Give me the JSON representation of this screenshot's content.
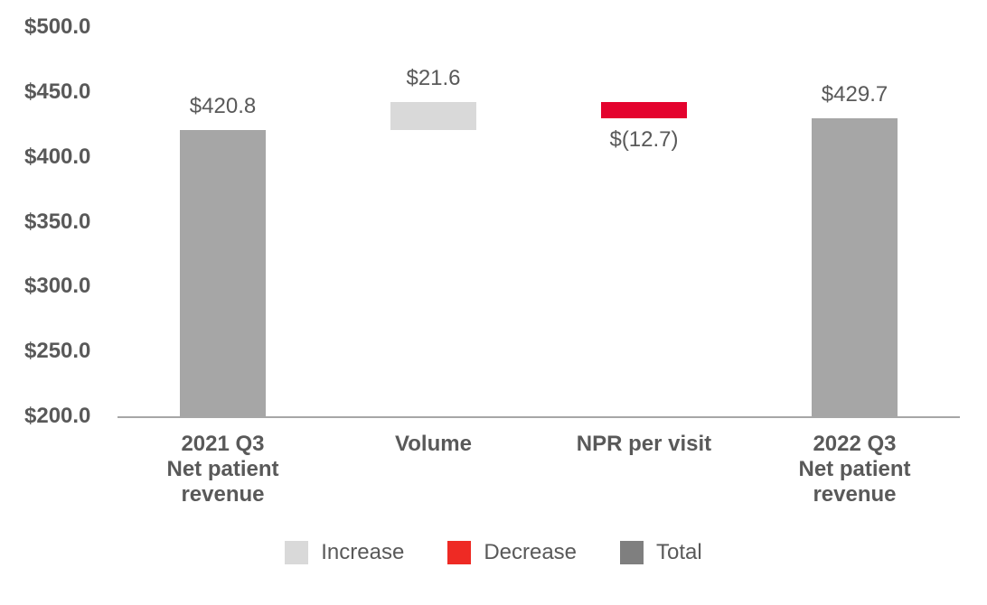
{
  "chart_data": {
    "type": "bar",
    "subtype": "waterfall",
    "title": "",
    "xlabel": "",
    "ylabel": "",
    "grid": false,
    "legend_position": "bottom-center",
    "y_axis": {
      "min": 200,
      "max": 500,
      "step": 50,
      "tick_labels": [
        "$200.0",
        "$250.0",
        "$300.0",
        "$350.0",
        "$400.0",
        "$450.0",
        "$500.0"
      ]
    },
    "categories": [
      "2021 Q3 Net patient revenue",
      "Volume",
      "NPR per visit",
      "2022 Q3 Net patient revenue"
    ],
    "bars": [
      {
        "category_lines": [
          "2021 Q3",
          "Net patient",
          "revenue"
        ],
        "role": "total",
        "start": 200,
        "end": 420.8,
        "value": 420.8,
        "label": "$420.8",
        "label_position": "above"
      },
      {
        "category_lines": [
          "Volume"
        ],
        "role": "increase",
        "start": 420.8,
        "end": 442.4,
        "value": 21.6,
        "label": "$21.6",
        "label_position": "above"
      },
      {
        "category_lines": [
          "NPR per visit"
        ],
        "role": "decrease",
        "start": 442.4,
        "end": 429.7,
        "value": -12.7,
        "label": "$(12.7)",
        "label_position": "below"
      },
      {
        "category_lines": [
          "2022 Q3",
          "Net patient",
          "revenue"
        ],
        "role": "total",
        "start": 200,
        "end": 429.7,
        "value": 429.7,
        "label": "$429.7",
        "label_position": "above"
      }
    ],
    "legend": [
      {
        "label": "Increase",
        "color": "#d9d9d9"
      },
      {
        "label": "Decrease",
        "color": "#ee2a24"
      },
      {
        "label": "Total",
        "color": "#7f7f7f"
      }
    ],
    "colors": {
      "total": "#a6a6a6",
      "increase": "#d9d9d9",
      "decrease": "#e4032e",
      "axis_line": "#a6a6a6",
      "text": "#595959"
    }
  }
}
